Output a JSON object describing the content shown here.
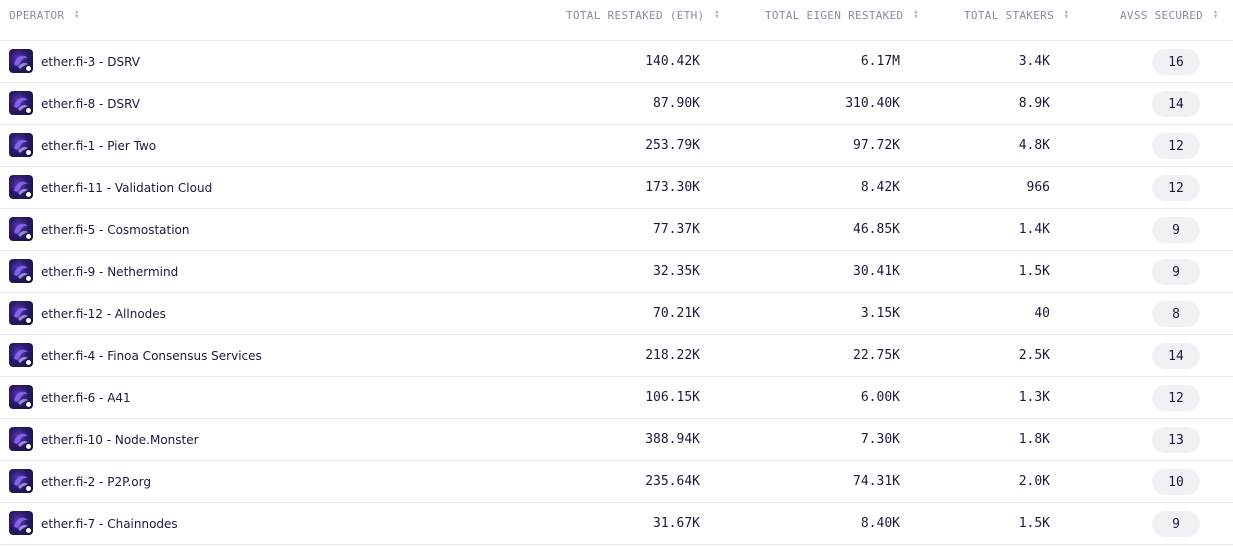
{
  "headers": {
    "operator": "OPERATOR",
    "total_restaked_eth": "TOTAL RESTAKED (ETH)",
    "total_eigen_restaked": "TOTAL EIGEN RESTAKED",
    "total_stakers": "TOTAL STAKERS",
    "avss_secured": "AVSS SECURED"
  },
  "sort_icon": "sort-updown-icon",
  "rows": [
    {
      "operator": "ether.fi-3 - DSRV",
      "eth": "140.42K",
      "eigen": "6.17M",
      "stakers": "3.4K",
      "avs": "16"
    },
    {
      "operator": "ether.fi-8 - DSRV",
      "eth": "87.90K",
      "eigen": "310.40K",
      "stakers": "8.9K",
      "avs": "14"
    },
    {
      "operator": "ether.fi-1 - Pier Two",
      "eth": "253.79K",
      "eigen": "97.72K",
      "stakers": "4.8K",
      "avs": "12"
    },
    {
      "operator": "ether.fi-11 - Validation Cloud",
      "eth": "173.30K",
      "eigen": "8.42K",
      "stakers": "966",
      "avs": "12"
    },
    {
      "operator": "ether.fi-5 - Cosmostation",
      "eth": "77.37K",
      "eigen": "46.85K",
      "stakers": "1.4K",
      "avs": "9"
    },
    {
      "operator": "ether.fi-9 - Nethermind",
      "eth": "32.35K",
      "eigen": "30.41K",
      "stakers": "1.5K",
      "avs": "9"
    },
    {
      "operator": "ether.fi-12 - Allnodes",
      "eth": "70.21K",
      "eigen": "3.15K",
      "stakers": "40",
      "avs": "8"
    },
    {
      "operator": "ether.fi-4 - Finoa Consensus Services",
      "eth": "218.22K",
      "eigen": "22.75K",
      "stakers": "2.5K",
      "avs": "14"
    },
    {
      "operator": "ether.fi-6 - A41",
      "eth": "106.15K",
      "eigen": "6.00K",
      "stakers": "1.3K",
      "avs": "12"
    },
    {
      "operator": "ether.fi-10 - Node.Monster",
      "eth": "388.94K",
      "eigen": "7.30K",
      "stakers": "1.8K",
      "avs": "13"
    },
    {
      "operator": "ether.fi-2 - P2P.org",
      "eth": "235.64K",
      "eigen": "74.31K",
      "stakers": "2.0K",
      "avs": "10"
    },
    {
      "operator": "ether.fi-7 - Chainnodes",
      "eth": "31.67K",
      "eigen": "8.40K",
      "stakers": "1.5K",
      "avs": "9"
    }
  ]
}
